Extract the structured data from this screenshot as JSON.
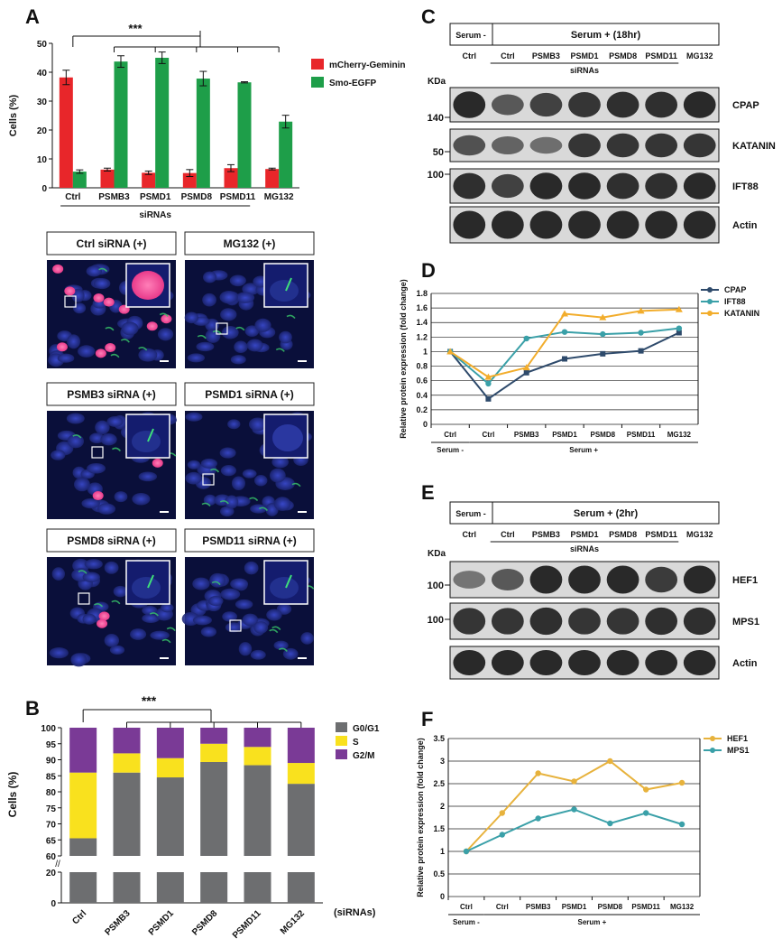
{
  "panel_letters": {
    "A": "A",
    "B": "B",
    "C": "C",
    "D": "D",
    "E": "E",
    "F": "F"
  },
  "significance": "***",
  "panelA": {
    "legend": [
      {
        "label": "mCherry-Geminin",
        "color": "#e8262a"
      },
      {
        "label": "Smo-EGFP",
        "color": "#1e9e49"
      }
    ],
    "group_label": "siRNAs",
    "micrographs": [
      {
        "label": "Ctrl siRNA (+)",
        "inset": "magenta-nucleus"
      },
      {
        "label": "MG132 (+)",
        "inset": "cilium"
      },
      {
        "label": "PSMB3 siRNA (+)",
        "inset": "cilium"
      },
      {
        "label": "PSMD1 siRNA (+)",
        "inset": "nucleus"
      },
      {
        "label": "PSMD8 siRNA (+)",
        "inset": "cilium"
      },
      {
        "label": "PSMD11 siRNA (+)",
        "inset": "cilium"
      }
    ]
  },
  "panelB": {
    "x_suffix": "(siRNAs)"
  },
  "panelC": {
    "serum_minus": "Serum -",
    "serum_plus": "Serum + (18hr)",
    "lanes": [
      "Ctrl",
      "Ctrl",
      "PSMB3",
      "PSMD1",
      "PSMD8",
      "PSMD11",
      "MG132"
    ],
    "siRNAs": "siRNAs",
    "kda": "KDa",
    "markers": [
      "140",
      "50",
      "100"
    ],
    "blots": [
      "CPAP",
      "KATANIN",
      "IFT88",
      "Actin"
    ]
  },
  "panelE": {
    "serum_minus": "Serum -",
    "serum_plus": "Serum + (2hr)",
    "lanes": [
      "Ctrl",
      "Ctrl",
      "PSMB3",
      "PSMD1",
      "PSMD8",
      "PSMD11",
      "MG132"
    ],
    "siRNAs": "siRNAs",
    "kda": "KDa",
    "markers": [
      "100",
      "100"
    ],
    "blots": [
      "HEF1",
      "MPS1",
      "Actin"
    ]
  },
  "chart_data": [
    {
      "id": "A",
      "type": "bar",
      "categories": [
        "Ctrl",
        "PSMB3",
        "PSMD1",
        "PSMD8",
        "PSMD11",
        "MG132"
      ],
      "series": [
        {
          "name": "mCherry-Geminin",
          "color": "#e8262a",
          "values": [
            38.2,
            6.3,
            5.2,
            5.1,
            6.8,
            6.5
          ],
          "errors": [
            2.5,
            0.5,
            0.6,
            1.2,
            1.2,
            0.3
          ]
        },
        {
          "name": "Smo-EGFP",
          "color": "#1e9e49",
          "values": [
            5.6,
            43.7,
            45.0,
            37.8,
            36.5,
            22.9
          ],
          "errors": [
            0.6,
            2.0,
            2.0,
            2.5,
            0.2,
            2.2
          ]
        }
      ],
      "ylabel": "Cells (%)",
      "ylim": [
        0,
        50
      ],
      "yticks": [
        0,
        10,
        20,
        30,
        40,
        50
      ]
    },
    {
      "id": "B",
      "type": "bar",
      "stacked": true,
      "categories": [
        "Ctrl",
        "PSMB3",
        "PSMD1",
        "PSMD8",
        "PSMD11",
        "MG132"
      ],
      "series": [
        {
          "name": "G0/G1",
          "color": "#6d6e70",
          "values": [
            65.5,
            86,
            84.5,
            89.3,
            88.3,
            82.5
          ]
        },
        {
          "name": "S",
          "color": "#f9e11e",
          "values": [
            20.5,
            6,
            6,
            5.7,
            5.7,
            6.5
          ]
        },
        {
          "name": "G2/M",
          "color": "#7a3a96",
          "values": [
            14,
            8,
            9.5,
            5,
            6,
            11
          ]
        }
      ],
      "ylabel": "Cells (%)",
      "yticks_upper": [
        "60",
        "65",
        "70",
        "75",
        "80",
        "85",
        "90",
        "95",
        "100"
      ],
      "yticks_lower": [
        "0",
        "20"
      ],
      "ylim_upper": [
        60,
        100
      ]
    },
    {
      "id": "D",
      "type": "line",
      "categories": [
        "Ctrl",
        "Ctrl",
        "PSMB3",
        "PSMD1",
        "PSMD8",
        "PSMD11",
        "MG132"
      ],
      "groups": [
        "Serum -",
        "Serum +"
      ],
      "series": [
        {
          "name": "CPAP",
          "color": "#2e4a6b",
          "marker": "square",
          "values": [
            1.0,
            0.35,
            0.71,
            0.9,
            0.97,
            1.01,
            1.26
          ]
        },
        {
          "name": "IFT88",
          "color": "#3aa0a8",
          "marker": "circle",
          "values": [
            1.0,
            0.56,
            1.18,
            1.27,
            1.24,
            1.26,
            1.32
          ]
        },
        {
          "name": "KATANIN",
          "color": "#f2ad2c",
          "marker": "triangle",
          "values": [
            1.0,
            0.65,
            0.78,
            1.52,
            1.47,
            1.56,
            1.58
          ]
        }
      ],
      "ylabel": "Relative protein expression (fold change)",
      "ylim": [
        0,
        1.8
      ],
      "yticks": [
        "0",
        "0.2",
        "0.4",
        "0.6",
        "0.8",
        "1",
        "1.2",
        "1.4",
        "1.6",
        "1.8"
      ]
    },
    {
      "id": "F",
      "type": "line",
      "categories": [
        "Ctrl",
        "Ctrl",
        "PSMB3",
        "PSMD1",
        "PSMD8",
        "PSMD11",
        "MG132"
      ],
      "groups": [
        "Serum -",
        "Serum +"
      ],
      "series": [
        {
          "name": "HEF1",
          "color": "#e7b23c",
          "marker": "circle",
          "values": [
            1.0,
            1.85,
            2.73,
            2.55,
            3.0,
            2.37,
            2.52
          ]
        },
        {
          "name": "MPS1",
          "color": "#3aa0a8",
          "marker": "circle",
          "values": [
            1.0,
            1.37,
            1.73,
            1.93,
            1.62,
            1.85,
            1.6
          ]
        }
      ],
      "ylabel": "Relative protein expression (fold change)",
      "ylim": [
        0,
        3.5
      ],
      "yticks": [
        "0",
        "0.5",
        "1",
        "1.5",
        "2",
        "2.5",
        "3",
        "3.5"
      ]
    }
  ]
}
